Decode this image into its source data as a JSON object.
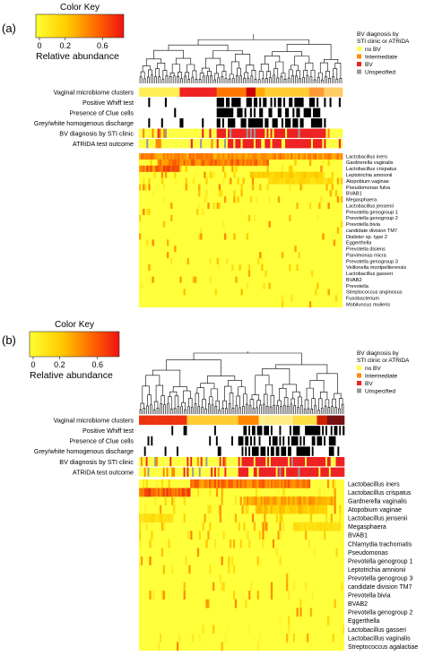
{
  "chart_data": [
    {
      "type": "heatmap",
      "panel_label": "(a)",
      "color_key": {
        "title": "Color Key",
        "ticks": [
          "0",
          "0.2",
          "0.6"
        ],
        "label": "Relative abundance",
        "colors": [
          "#ffff33",
          "#ffcc00",
          "#ff6600",
          "#ee1111"
        ]
      },
      "legend": {
        "title": "BV diagnosis by STI clinic or ATRiDA",
        "placement": "top-right",
        "entries": [
          {
            "label": "no BV",
            "color": "#ffff44"
          },
          {
            "label": "Intermediate",
            "color": "#ff8800"
          },
          {
            "label": "BV",
            "color": "#ee2222"
          },
          {
            "label": "Unspecified",
            "color": "#999999"
          }
        ]
      },
      "annotation_rows": [
        "Vaginal microbiome clusters",
        "Positive Whiff test",
        "Presence of Clue cells",
        "Grey/white homogenous discharge",
        "BV diagnosis by STI clinic",
        "ATRiDA test outcome"
      ],
      "taxa": [
        "Lactobacillus iners",
        "Gardnerella vaginalis",
        "Lactobacillus crispatus",
        "Leptotrichia amnionii",
        "Atopobium vaginae",
        "Pseudomonas fulva",
        "BVAB1",
        "Megasphaera",
        "Lactobacillus jensenii",
        "Prevotella genogroup 1",
        "Prevotella genogroup 2",
        "Prevotella bivia",
        "candidate division TM7",
        "Dialister sp. type 2",
        "Eggerthella",
        "Prevotella disiens",
        "Parvimonas micra",
        "Prevotella genogroup 3",
        "Veillonella montpellierensis",
        "Lactobacillus gasseri",
        "BVAB2",
        "Prevotella",
        "Streptococcus anginosus",
        "Fusobacterium",
        "Mobiluncus mulieris"
      ]
    },
    {
      "type": "heatmap",
      "panel_label": "(b)",
      "color_key": {
        "title": "Color Key",
        "ticks": [
          "0",
          "0.2",
          "0.6"
        ],
        "label": "Relative abundance",
        "colors": [
          "#ffff33",
          "#ffcc00",
          "#ff6600",
          "#ee1111"
        ]
      },
      "legend": {
        "title": "BV diagnosis by STI clinic or ATRiDA",
        "placement": "top-right",
        "entries": [
          {
            "label": "no BV",
            "color": "#ffff44"
          },
          {
            "label": "Intermediate",
            "color": "#ff8800"
          },
          {
            "label": "BV",
            "color": "#ee2222"
          },
          {
            "label": "Unspecified",
            "color": "#999999"
          }
        ]
      },
      "annotation_rows": [
        "Vaginal microbiome clusters",
        "Positive Whiff test",
        "Presence of Clue cells",
        "Grey/white homogenous discharge",
        "BV diagnosis by STI clinic",
        "ATRiDA test outcome"
      ],
      "taxa": [
        "Lactobacillus iners",
        "Lactobacillus crispatus",
        "Gardnerella vaginalis",
        "Atopobium vaginae",
        "Lactobacillus jensenii",
        "Megasphaera",
        "BVAB1",
        "Chlamydia trachomatis",
        "Pseudomonas",
        "Prevotella genogroup 1",
        "Leptotrichia amnionii",
        "Prevotella genogroup 3",
        "candidate division TM7",
        "Prevotella bivia",
        "BVAB2",
        "Prevotella genogroup 2",
        "Eggerthella",
        "Lactobacillus gasseri",
        "Lactobacillus vaginalis",
        "Streptococcus agalactiae"
      ]
    }
  ]
}
